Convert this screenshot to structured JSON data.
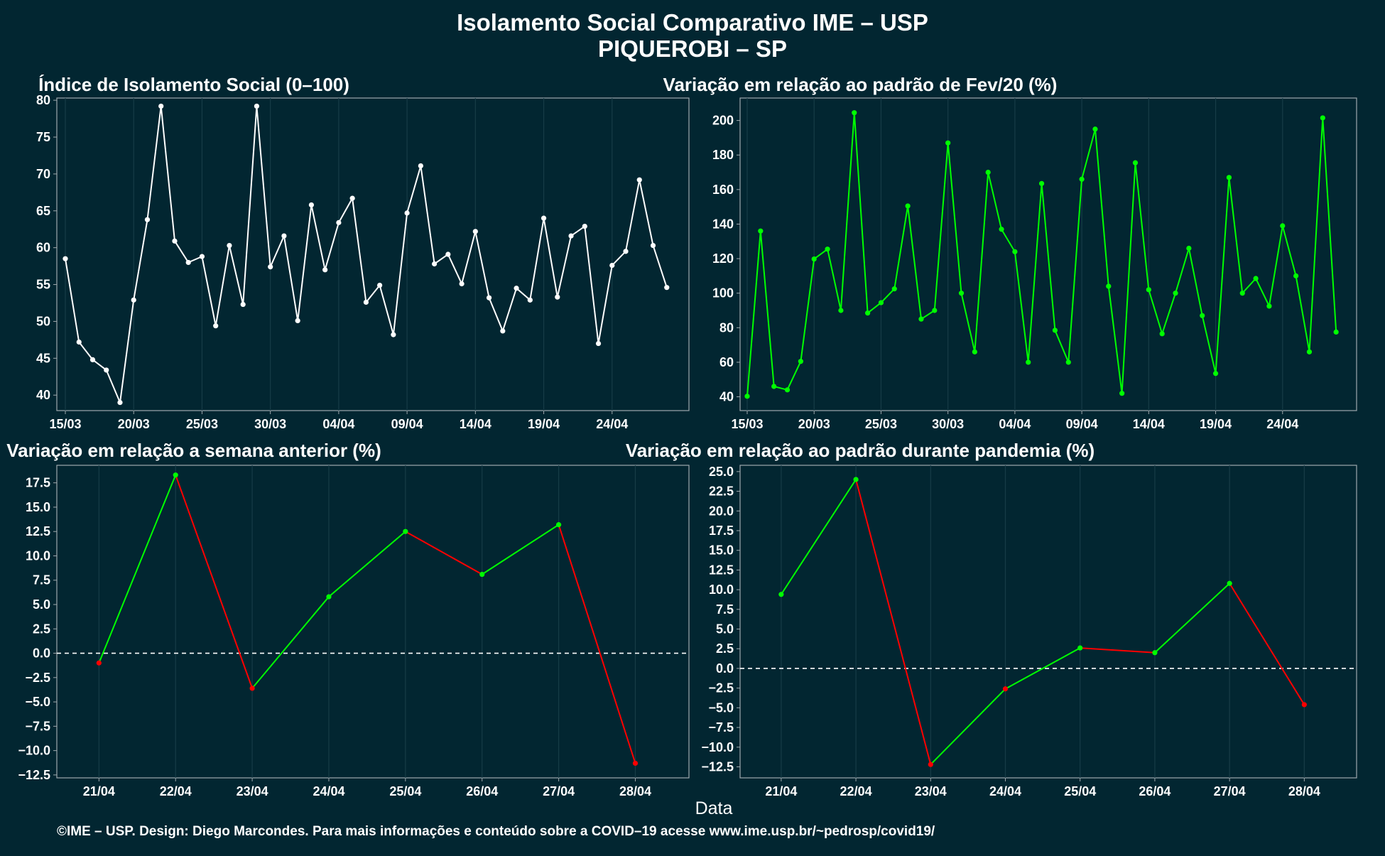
{
  "header": {
    "title_line1": "Isolamento Social Comparativo IME – USP",
    "title_line2": "PIQUEROBI – SP"
  },
  "x_axis_label": "Data",
  "footer": "©IME – USP. Design: Diego Marcondes. Para mais informações e conteúdo sobre a COVID–19 acesse www.ime.usp.br/~pedrosp/covid19/",
  "colors": {
    "background": "#022631",
    "grid": "#173c47",
    "panel_border": "#a0a8ad",
    "white": "#ffffff",
    "green": "#00ff00",
    "red": "#ff0000"
  },
  "chart_data": [
    {
      "type": "line",
      "title": "Índice de Isolamento Social (0–100)",
      "x_start_date": "15/03",
      "x": [
        "15/03",
        "16/03",
        "17/03",
        "18/03",
        "19/03",
        "20/03",
        "21/03",
        "22/03",
        "23/03",
        "24/03",
        "25/03",
        "26/03",
        "27/03",
        "28/03",
        "29/03",
        "30/03",
        "31/03",
        "01/04",
        "02/04",
        "03/04",
        "04/04",
        "05/04",
        "06/04",
        "07/04",
        "08/04",
        "09/04",
        "10/04",
        "11/04",
        "12/04",
        "13/04",
        "14/04",
        "15/04",
        "16/04",
        "17/04",
        "18/04",
        "19/04",
        "20/04",
        "21/04",
        "22/04",
        "23/04",
        "24/04",
        "25/04",
        "26/04",
        "27/04",
        "28/04"
      ],
      "x_ticks": [
        "15/03",
        "20/03",
        "25/03",
        "30/03",
        "04/04",
        "09/04",
        "14/04",
        "19/04",
        "24/04"
      ],
      "series": [
        {
          "values": [
            58.5,
            47.2,
            44.8,
            43.4,
            39.0,
            52.9,
            63.8,
            79.2,
            60.9,
            58.0,
            58.8,
            49.4,
            60.3,
            52.3,
            79.2,
            57.4,
            61.6,
            50.1,
            65.8,
            57.0,
            63.4,
            66.7,
            52.6,
            54.9,
            48.2,
            64.7,
            71.1,
            57.8,
            59.1,
            55.1,
            62.2,
            53.2,
            48.7,
            54.5,
            52.9,
            64.0,
            53.3,
            61.6,
            62.9,
            47.0,
            57.6,
            59.5,
            69.2,
            60.3,
            54.6
          ]
        }
      ],
      "y_ticks": [
        40,
        45,
        50,
        55,
        60,
        65,
        70,
        75,
        80
      ],
      "ylim": [
        37.9,
        80.3
      ],
      "line_color": "#ffffff"
    },
    {
      "type": "line",
      "title": "Variação em relação ao padrão de Fev/20 (%)",
      "x": [
        "15/03",
        "16/03",
        "17/03",
        "18/03",
        "19/03",
        "20/03",
        "21/03",
        "22/03",
        "23/03",
        "24/03",
        "25/03",
        "26/03",
        "27/03",
        "28/03",
        "29/03",
        "30/03",
        "31/03",
        "01/04",
        "02/04",
        "03/04",
        "04/04",
        "05/04",
        "06/04",
        "07/04",
        "08/04",
        "09/04",
        "10/04",
        "11/04",
        "12/04",
        "13/04",
        "14/04",
        "15/04",
        "16/04",
        "17/04",
        "18/04",
        "19/04",
        "20/04",
        "21/04",
        "22/04",
        "23/04",
        "24/04",
        "25/04",
        "26/04",
        "27/04",
        "28/04"
      ],
      "x_ticks": [
        "15/03",
        "20/03",
        "25/03",
        "30/03",
        "04/04",
        "09/04",
        "14/04",
        "19/04",
        "24/04"
      ],
      "series": [
        {
          "values": [
            40.3,
            136.0,
            46.0,
            44.0,
            60.5,
            119.8,
            125.5,
            90.0,
            204.5,
            88.5,
            94.5,
            102.5,
            150.5,
            85.0,
            90.0,
            187.0,
            100.0,
            66.0,
            170.0,
            137.0,
            124.0,
            60.0,
            163.5,
            78.5,
            60.0,
            166.0,
            195.0,
            104.0,
            42.0,
            175.5,
            102.0,
            76.5,
            100.0,
            126.0,
            87.0,
            53.5,
            167.0,
            100.0,
            108.5,
            92.5,
            139.0,
            110.0,
            66.0,
            201.5,
            77.5
          ]
        }
      ],
      "y_ticks": [
        40,
        60,
        80,
        100,
        120,
        140,
        160,
        180,
        200
      ],
      "ylim": [
        32.0,
        213.0
      ],
      "line_color": "#00ff00"
    },
    {
      "type": "line",
      "title": "Variação em relação a semana anterior (%)",
      "x": [
        "21/04",
        "22/04",
        "23/04",
        "24/04",
        "25/04",
        "26/04",
        "27/04",
        "28/04"
      ],
      "x_ticks": [
        "21/04",
        "22/04",
        "23/04",
        "24/04",
        "25/04",
        "26/04",
        "27/04",
        "28/04"
      ],
      "series": [
        {
          "values": [
            -1.0,
            18.3,
            -3.6,
            5.8,
            12.5,
            8.1,
            13.2,
            -11.3
          ]
        }
      ],
      "y_ticks": [
        -12.5,
        -10.0,
        -7.5,
        -5.0,
        -2.5,
        0.0,
        2.5,
        5.0,
        7.5,
        10.0,
        12.5,
        15.0,
        17.5
      ],
      "y_tick_labels": [
        "−12.5",
        "−10.0",
        "−7.5",
        "−5.0",
        "−2.5",
        "0.0",
        "2.5",
        "5.0",
        "7.5",
        "10.0",
        "12.5",
        "15.0",
        "17.5"
      ],
      "ylim": [
        -12.8,
        19.3
      ],
      "zero_line": true,
      "positive_color": "#00ff00",
      "negative_color": "#ff0000"
    },
    {
      "type": "line",
      "title": "Variação em relação ao padrão durante pandemia (%)",
      "x": [
        "21/04",
        "22/04",
        "23/04",
        "24/04",
        "25/04",
        "26/04",
        "27/04",
        "28/04"
      ],
      "x_ticks": [
        "21/04",
        "22/04",
        "23/04",
        "24/04",
        "25/04",
        "26/04",
        "27/04",
        "28/04"
      ],
      "series": [
        {
          "values": [
            9.4,
            24.0,
            -12.2,
            -2.6,
            2.6,
            2.0,
            10.8,
            -4.6
          ]
        }
      ],
      "y_ticks": [
        -12.5,
        -10.0,
        -7.5,
        -5.0,
        -2.5,
        0.0,
        2.5,
        5.0,
        7.5,
        10.0,
        12.5,
        15.0,
        17.5,
        20.0,
        22.5,
        25.0
      ],
      "y_tick_labels": [
        "−12.5",
        "−10.0",
        "−7.5",
        "−5.0",
        "−2.5",
        "0.0",
        "2.5",
        "5.0",
        "7.5",
        "10.0",
        "12.5",
        "15.0",
        "17.5",
        "20.0",
        "22.5",
        "25.0"
      ],
      "ylim": [
        -13.9,
        25.8
      ],
      "zero_line": true,
      "positive_color": "#00ff00",
      "negative_color": "#ff0000"
    }
  ]
}
